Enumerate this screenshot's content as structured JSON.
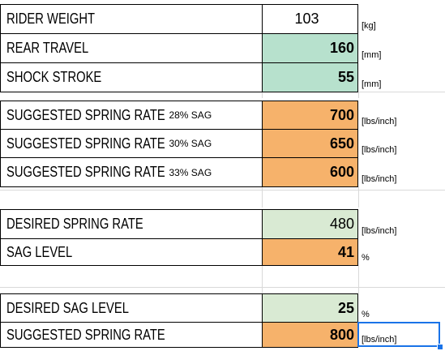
{
  "block1": [
    {
      "label": "RIDER WEIGHT",
      "small": "",
      "value": "103",
      "unit": "[kg]"
    },
    {
      "label": "REAR TRAVEL",
      "small": "",
      "value": "160",
      "unit": "[mm]"
    },
    {
      "label": "SHOCK STROKE",
      "small": "",
      "value": "55",
      "unit": "[mm]"
    }
  ],
  "block2": [
    {
      "label": "SUGGESTED SPRING RATE",
      "small": "28% SAG",
      "value": "700",
      "unit": "[lbs/inch]"
    },
    {
      "label": "SUGGESTED SPRING RATE",
      "small": "30% SAG",
      "value": "650",
      "unit": "[lbs/inch]"
    },
    {
      "label": "SUGGESTED SPRING RATE",
      "small": "33% SAG",
      "value": "600",
      "unit": "[lbs/inch]"
    }
  ],
  "block3": [
    {
      "label": "DESIRED SPRING RATE",
      "small": "",
      "value": "480",
      "unit": "[lbs/inch]"
    },
    {
      "label": "SAG LEVEL",
      "small": "",
      "value": "41",
      "unit": "%"
    }
  ],
  "block4": [
    {
      "label": "DESIRED SAG LEVEL",
      "small": "",
      "value": "25",
      "unit": "%"
    },
    {
      "label": "SUGGESTED SPRING RATE",
      "small": "",
      "value": "800",
      "unit": "[lbs/inch]"
    }
  ],
  "colors": {
    "input_green": "#b7e1cd",
    "light_green": "#d9ead3",
    "output_orange": "#f6b26b",
    "selection_blue": "#1a73e8"
  }
}
